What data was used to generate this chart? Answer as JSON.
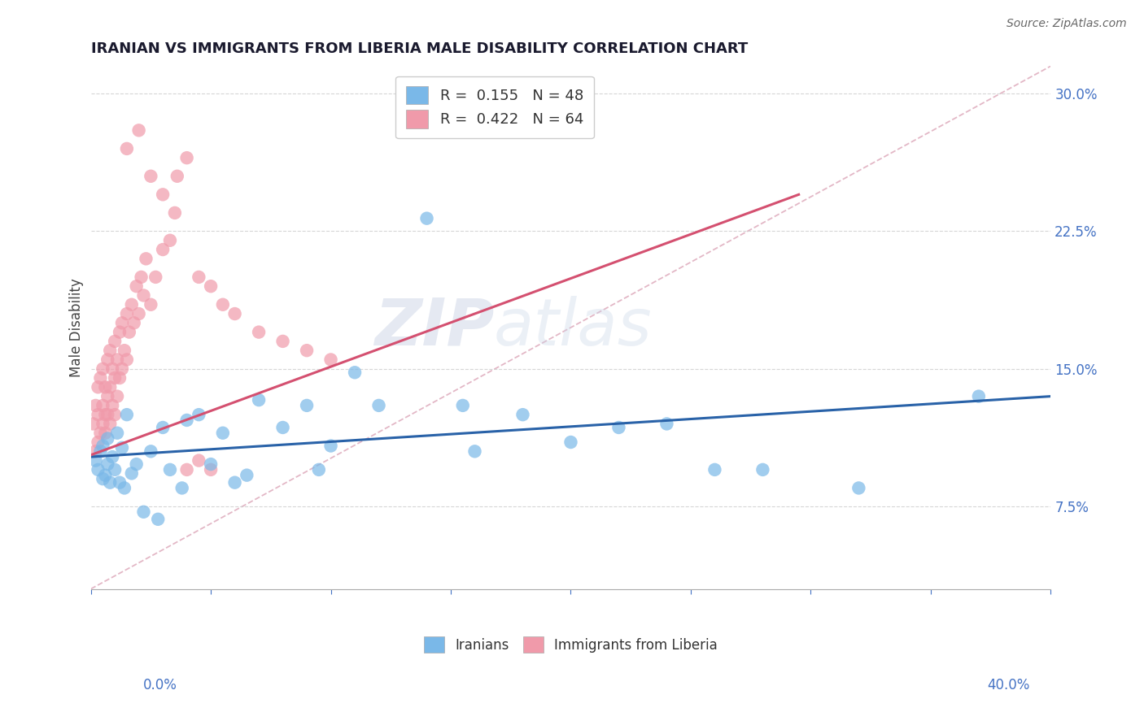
{
  "title": "IRANIAN VS IMMIGRANTS FROM LIBERIA MALE DISABILITY CORRELATION CHART",
  "source": "Source: ZipAtlas.com",
  "ylabel": "Male Disability",
  "xmin": 0.0,
  "xmax": 0.4,
  "ymin": 0.03,
  "ymax": 0.315,
  "yticks": [
    0.075,
    0.15,
    0.225,
    0.3
  ],
  "xticks": [
    0.0,
    0.05,
    0.1,
    0.15,
    0.2,
    0.25,
    0.3,
    0.35,
    0.4
  ],
  "watermark_zip": "ZIP",
  "watermark_atlas": "atlas",
  "legend_r1": "R =  0.155   N = 48",
  "legend_r2": "R =  0.422   N = 64",
  "legend_label_iranians": "Iranians",
  "legend_label_liberia": "Immigrants from Liberia",
  "iranian_color": "#7ab8e8",
  "liberia_color": "#f09aaa",
  "iranian_line_color": "#2962a8",
  "liberia_line_color": "#d45070",
  "dashed_diag_color": "#e0b0c0",
  "iranian_x": [
    0.002,
    0.003,
    0.004,
    0.005,
    0.005,
    0.006,
    0.007,
    0.007,
    0.008,
    0.009,
    0.01,
    0.011,
    0.012,
    0.013,
    0.014,
    0.015,
    0.017,
    0.019,
    0.022,
    0.025,
    0.028,
    0.03,
    0.033,
    0.038,
    0.04,
    0.045,
    0.05,
    0.055,
    0.06,
    0.065,
    0.07,
    0.08,
    0.09,
    0.095,
    0.1,
    0.11,
    0.12,
    0.14,
    0.155,
    0.16,
    0.18,
    0.2,
    0.22,
    0.24,
    0.26,
    0.28,
    0.32,
    0.37
  ],
  "iranian_y": [
    0.1,
    0.095,
    0.105,
    0.09,
    0.108,
    0.092,
    0.098,
    0.112,
    0.088,
    0.102,
    0.095,
    0.115,
    0.088,
    0.107,
    0.085,
    0.125,
    0.093,
    0.098,
    0.072,
    0.105,
    0.068,
    0.118,
    0.095,
    0.085,
    0.122,
    0.125,
    0.098,
    0.115,
    0.088,
    0.092,
    0.133,
    0.118,
    0.13,
    0.095,
    0.108,
    0.148,
    0.13,
    0.232,
    0.13,
    0.105,
    0.125,
    0.11,
    0.118,
    0.12,
    0.095,
    0.095,
    0.085,
    0.135
  ],
  "liberia_x": [
    0.001,
    0.002,
    0.002,
    0.003,
    0.003,
    0.003,
    0.004,
    0.004,
    0.005,
    0.005,
    0.005,
    0.006,
    0.006,
    0.006,
    0.007,
    0.007,
    0.007,
    0.008,
    0.008,
    0.008,
    0.009,
    0.009,
    0.01,
    0.01,
    0.01,
    0.011,
    0.011,
    0.012,
    0.012,
    0.013,
    0.013,
    0.014,
    0.015,
    0.015,
    0.016,
    0.017,
    0.018,
    0.019,
    0.02,
    0.021,
    0.022,
    0.023,
    0.025,
    0.027,
    0.03,
    0.033,
    0.036,
    0.04,
    0.045,
    0.05,
    0.055,
    0.06,
    0.07,
    0.08,
    0.09,
    0.1,
    0.015,
    0.02,
    0.025,
    0.03,
    0.035,
    0.04,
    0.045,
    0.05
  ],
  "liberia_y": [
    0.12,
    0.13,
    0.105,
    0.14,
    0.11,
    0.125,
    0.145,
    0.115,
    0.13,
    0.12,
    0.15,
    0.125,
    0.14,
    0.115,
    0.135,
    0.125,
    0.155,
    0.12,
    0.14,
    0.16,
    0.13,
    0.15,
    0.125,
    0.145,
    0.165,
    0.135,
    0.155,
    0.145,
    0.17,
    0.15,
    0.175,
    0.16,
    0.155,
    0.18,
    0.17,
    0.185,
    0.175,
    0.195,
    0.18,
    0.2,
    0.19,
    0.21,
    0.185,
    0.2,
    0.215,
    0.22,
    0.255,
    0.265,
    0.2,
    0.195,
    0.185,
    0.18,
    0.17,
    0.165,
    0.16,
    0.155,
    0.27,
    0.28,
    0.255,
    0.245,
    0.235,
    0.095,
    0.1,
    0.095
  ],
  "liberia_line_x_start": 0.0,
  "liberia_line_x_end": 0.295,
  "liberia_line_y_start": 0.103,
  "liberia_line_y_end": 0.245,
  "iranian_line_x_start": 0.0,
  "iranian_line_x_end": 0.4,
  "iranian_line_y_start": 0.102,
  "iranian_line_y_end": 0.135
}
